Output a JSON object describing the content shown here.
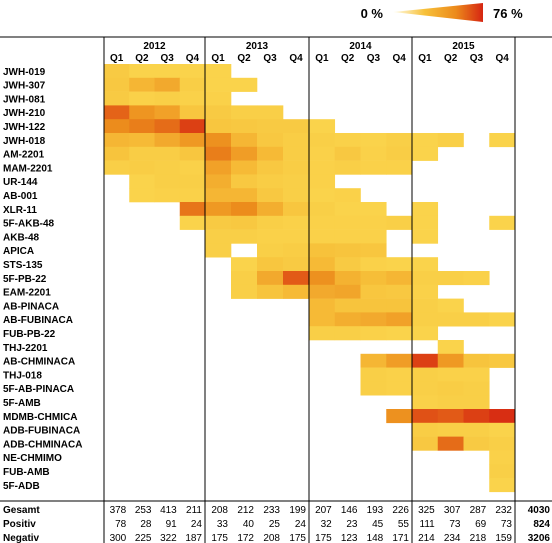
{
  "chart_data": {
    "type": "heatmap",
    "legend": {
      "min_label": "0 %",
      "max_label": "76 %",
      "min": 0,
      "max": 76,
      "colors": [
        "#fffdea",
        "#f7c13a",
        "#ec8a1b",
        "#d62512"
      ]
    },
    "years": [
      "2012",
      "2013",
      "2014",
      "2015"
    ],
    "quarters": [
      "Q1",
      "Q2",
      "Q3",
      "Q4"
    ],
    "rows": [
      "JWH-019",
      "JWH-307",
      "JWH-081",
      "JWH-210",
      "JWH-122",
      "JWH-018",
      "AM-2201",
      "MAM-2201",
      "UR-144",
      "AB-001",
      "XLR-11",
      "5F-AKB-48",
      "AKB-48",
      "APICA",
      "STS-135",
      "5F-PB-22",
      "EAM-2201",
      "AB-PINACA",
      "AB-FUBINACA",
      "FUB-PB-22",
      "THJ-2201",
      "AB-CHMINACA",
      "THJ-018",
      "5F-AB-PINACA",
      "5F-AMB",
      "MDMB-CHMICA",
      "ADB-FUBINACA",
      "ADB-CHMINACA",
      "NE-CHMIMO",
      "FUB-AMB",
      "5F-ADB"
    ],
    "values": [
      [
        18,
        10,
        10,
        10,
        10,
        null,
        null,
        null,
        null,
        null,
        null,
        null,
        null,
        null,
        null,
        null
      ],
      [
        20,
        32,
        38,
        15,
        10,
        10,
        null,
        null,
        null,
        null,
        null,
        null,
        null,
        null,
        null,
        null
      ],
      [
        18,
        12,
        14,
        12,
        12,
        null,
        null,
        null,
        null,
        null,
        null,
        null,
        null,
        null,
        null,
        null
      ],
      [
        62,
        48,
        42,
        22,
        18,
        14,
        14,
        null,
        null,
        null,
        null,
        null,
        null,
        null,
        null,
        null
      ],
      [
        52,
        56,
        60,
        70,
        22,
        20,
        18,
        18,
        10,
        null,
        null,
        null,
        null,
        null,
        null,
        null
      ],
      [
        32,
        30,
        38,
        46,
        50,
        32,
        20,
        16,
        14,
        12,
        10,
        14,
        10,
        14,
        null,
        10
      ],
      [
        24,
        16,
        16,
        22,
        56,
        44,
        30,
        16,
        12,
        20,
        12,
        16,
        10,
        null,
        null,
        null
      ],
      [
        14,
        16,
        14,
        12,
        42,
        30,
        20,
        16,
        12,
        14,
        12,
        12,
        null,
        null,
        null,
        null
      ],
      [
        null,
        10,
        14,
        14,
        36,
        20,
        16,
        14,
        12,
        null,
        null,
        null,
        null,
        null,
        null,
        null
      ],
      [
        null,
        10,
        12,
        12,
        32,
        32,
        20,
        14,
        10,
        12,
        null,
        null,
        null,
        null,
        null,
        null
      ],
      [
        null,
        null,
        null,
        58,
        46,
        52,
        36,
        22,
        14,
        10,
        10,
        null,
        10,
        null,
        null,
        null
      ],
      [
        null,
        null,
        null,
        10,
        18,
        20,
        14,
        12,
        12,
        12,
        12,
        14,
        10,
        null,
        null,
        10
      ],
      [
        null,
        null,
        null,
        null,
        14,
        14,
        12,
        12,
        12,
        12,
        12,
        null,
        10,
        null,
        null,
        null
      ],
      [
        null,
        null,
        null,
        null,
        14,
        null,
        14,
        16,
        26,
        24,
        22,
        null,
        null,
        null,
        null,
        null
      ],
      [
        null,
        null,
        null,
        null,
        null,
        10,
        22,
        18,
        30,
        18,
        12,
        10,
        10,
        null,
        null,
        null
      ],
      [
        null,
        null,
        null,
        null,
        null,
        14,
        38,
        64,
        50,
        34,
        28,
        32,
        14,
        14,
        12,
        null
      ],
      [
        null,
        null,
        null,
        null,
        null,
        14,
        24,
        30,
        38,
        40,
        22,
        20,
        12,
        null,
        null,
        null
      ],
      [
        null,
        null,
        null,
        null,
        null,
        null,
        null,
        null,
        30,
        24,
        24,
        24,
        14,
        10,
        null,
        null
      ],
      [
        null,
        null,
        null,
        null,
        null,
        null,
        null,
        null,
        30,
        36,
        38,
        42,
        14,
        14,
        14,
        10
      ],
      [
        null,
        null,
        null,
        null,
        null,
        null,
        null,
        null,
        14,
        14,
        12,
        10,
        10,
        null,
        null,
        null
      ],
      [
        null,
        null,
        null,
        null,
        null,
        null,
        null,
        null,
        null,
        null,
        null,
        null,
        null,
        10,
        null,
        null
      ],
      [
        null,
        null,
        null,
        null,
        null,
        null,
        null,
        null,
        null,
        null,
        32,
        44,
        70,
        46,
        24,
        20
      ],
      [
        null,
        null,
        null,
        null,
        null,
        null,
        null,
        null,
        null,
        null,
        14,
        12,
        14,
        12,
        12,
        null
      ],
      [
        null,
        null,
        null,
        null,
        null,
        null,
        null,
        null,
        null,
        null,
        14,
        12,
        14,
        16,
        14,
        null
      ],
      [
        null,
        null,
        null,
        null,
        null,
        null,
        null,
        null,
        null,
        null,
        null,
        null,
        12,
        14,
        14,
        null
      ],
      [
        null,
        null,
        null,
        null,
        null,
        null,
        null,
        null,
        null,
        null,
        null,
        50,
        66,
        64,
        70,
        74
      ],
      [
        null,
        null,
        null,
        null,
        null,
        null,
        null,
        null,
        null,
        null,
        null,
        null,
        16,
        14,
        14,
        10
      ],
      [
        null,
        null,
        null,
        null,
        null,
        null,
        null,
        null,
        null,
        null,
        null,
        null,
        20,
        60,
        18,
        14
      ],
      [
        null,
        null,
        null,
        null,
        null,
        null,
        null,
        null,
        null,
        null,
        null,
        null,
        null,
        null,
        null,
        12
      ],
      [
        null,
        null,
        null,
        null,
        null,
        null,
        null,
        null,
        null,
        null,
        null,
        null,
        null,
        null,
        null,
        14
      ],
      [
        null,
        null,
        null,
        null,
        null,
        null,
        null,
        null,
        null,
        null,
        null,
        null,
        null,
        null,
        null,
        10
      ]
    ],
    "footer": [
      {
        "label": "Gesamt",
        "values": [
          378,
          253,
          413,
          211,
          208,
          212,
          233,
          199,
          207,
          146,
          193,
          226,
          325,
          307,
          287,
          232
        ],
        "total": 4030
      },
      {
        "label": "Positiv",
        "values": [
          78,
          28,
          91,
          24,
          33,
          40,
          25,
          24,
          32,
          23,
          45,
          55,
          111,
          73,
          69,
          73
        ],
        "total": 824
      },
      {
        "label": "Negativ",
        "values": [
          300,
          225,
          322,
          187,
          175,
          172,
          208,
          175,
          175,
          123,
          148,
          171,
          214,
          234,
          218,
          159
        ],
        "total": 3206
      }
    ]
  }
}
